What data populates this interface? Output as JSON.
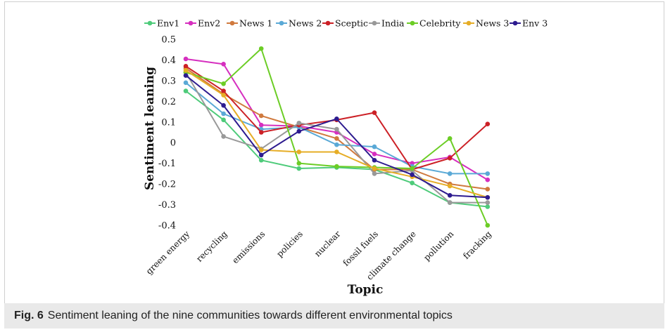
{
  "caption": {
    "label": "Fig. 6",
    "text": "Sentiment leaning of the nine communities towards different environmental topics"
  },
  "chart_data": {
    "type": "line",
    "title": "",
    "xlabel": "Topic",
    "ylabel": "Sentiment leaning",
    "ylim": [
      -0.4,
      0.5
    ],
    "yticks": [
      0.5,
      0.4,
      0.3,
      0.2,
      0.1,
      0,
      -0.1,
      -0.2,
      -0.3,
      -0.4
    ],
    "ytick_labels": [
      "0.5",
      "0.4",
      "0.3",
      "0.2",
      "0.1",
      "0",
      "-0.1",
      "-0.2",
      "-0.3",
      "-0.4"
    ],
    "grid": false,
    "legend_position": "top",
    "categories": [
      "green energy",
      "recycling",
      "emissions",
      "policies",
      "nuclear",
      "fossil fuels",
      "climate change",
      "pollution",
      "fracking"
    ],
    "series": [
      {
        "name": "Env1",
        "color": "#4ecb7a",
        "values": [
          0.25,
          0.11,
          -0.085,
          -0.125,
          -0.12,
          -0.13,
          -0.195,
          -0.29,
          -0.31
        ]
      },
      {
        "name": "Env2",
        "color": "#d62fbf",
        "values": [
          0.405,
          0.38,
          0.085,
          0.08,
          0.05,
          -0.055,
          -0.1,
          -0.07,
          -0.18
        ]
      },
      {
        "name": "News 1",
        "color": "#d07a3e",
        "values": [
          0.36,
          0.235,
          0.13,
          0.075,
          0.02,
          -0.13,
          -0.13,
          -0.2,
          -0.225
        ]
      },
      {
        "name": "News 2",
        "color": "#5aa9d6",
        "values": [
          0.29,
          0.14,
          0.065,
          0.075,
          -0.01,
          -0.02,
          -0.115,
          -0.15,
          -0.15
        ]
      },
      {
        "name": "Sceptic",
        "color": "#cc2026",
        "values": [
          0.37,
          0.25,
          0.05,
          0.085,
          0.11,
          0.145,
          -0.13,
          -0.075,
          0.09
        ]
      },
      {
        "name": "India",
        "color": "#999999",
        "values": [
          0.34,
          0.03,
          -0.03,
          0.095,
          0.065,
          -0.15,
          -0.135,
          -0.29,
          -0.29
        ]
      },
      {
        "name": "Celebrity",
        "color": "#6ccd26",
        "values": [
          0.34,
          0.285,
          0.455,
          -0.1,
          -0.115,
          -0.12,
          -0.125,
          0.02,
          -0.4
        ]
      },
      {
        "name": "News 3",
        "color": "#e6ad26",
        "values": [
          0.35,
          0.23,
          -0.035,
          -0.045,
          -0.045,
          -0.125,
          -0.165,
          -0.21,
          -0.265
        ]
      },
      {
        "name": "Env 3",
        "color": "#2d1b8f",
        "values": [
          0.325,
          0.18,
          -0.06,
          0.055,
          0.115,
          -0.085,
          -0.155,
          -0.255,
          -0.265
        ]
      }
    ]
  }
}
